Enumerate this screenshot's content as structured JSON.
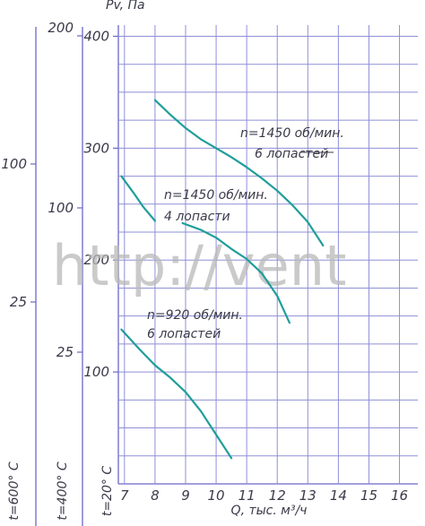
{
  "chart_data": {
    "type": "line",
    "ylabel": "Pv, Па",
    "xlabel": "Q, тыс. м³/ч",
    "xlim": [
      6.8,
      16.6
    ],
    "ylim": [
      0,
      410
    ],
    "x_ticks": [
      "7",
      "8",
      "9",
      "10",
      "11",
      "12",
      "13",
      "14",
      "15",
      "16"
    ],
    "y_ticks": [
      {
        "value": 100,
        "label": "100"
      },
      {
        "value": 200,
        "label": "200"
      },
      {
        "value": 300,
        "label": "300"
      },
      {
        "value": 400,
        "label": "400"
      }
    ],
    "grid": true,
    "series": [
      {
        "name": "n=1450 об/мин. 6 лопастей",
        "label_lines": [
          "n=1450 об/мин.",
          "6 лопастей"
        ],
        "x": [
          8.0,
          8.5,
          9.0,
          9.5,
          10.0,
          10.5,
          11.0,
          11.5,
          12.0,
          12.5,
          13.0,
          13.5
        ],
        "y": [
          343,
          330,
          318,
          308,
          300,
          292,
          283,
          273,
          262,
          249,
          234,
          213
        ]
      },
      {
        "name": "n=1450 об/мин. 4 лопасти",
        "label_lines": [
          "n=1450 об/мин.",
          "4 лопасти"
        ],
        "x": [
          6.9,
          7.3,
          7.6,
          8.0
        ],
        "y": [
          275,
          260,
          248,
          235
        ],
        "x2": [
          8.9,
          9.5,
          10.0,
          10.5,
          11.0,
          11.5,
          12.0,
          12.4
        ],
        "y2": [
          233,
          227,
          220,
          210,
          201,
          188,
          168,
          144
        ]
      },
      {
        "name": "n=920 об/мин. 6 лопастей",
        "label_lines": [
          "n=920 об/мин.",
          "6 лопастей"
        ],
        "x": [
          6.9,
          7.5,
          8.0,
          8.5,
          9.0,
          9.5,
          10.0,
          10.5
        ],
        "y": [
          138,
          120,
          106,
          95,
          82,
          65,
          44,
          23
        ]
      }
    ],
    "secondary_scales": [
      {
        "label": "t=600° C",
        "ticks": [
          "100",
          "25"
        ]
      },
      {
        "label": "t=400° C",
        "ticks": [
          "200",
          "100",
          "25"
        ]
      },
      {
        "label": "t=20° C"
      }
    ],
    "watermark": "http://vent"
  }
}
